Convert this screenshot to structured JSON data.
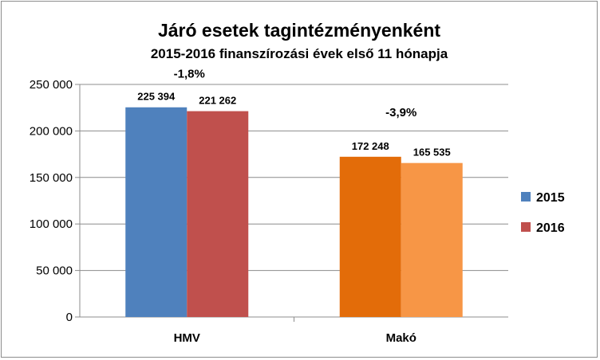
{
  "chart_data": {
    "type": "bar",
    "title": "Járó esetek tagintézményenként",
    "subtitle": "2015-2016 finanszírozási  évek első 11 hónapja",
    "categories": [
      "HMV",
      "Makó"
    ],
    "series": [
      {
        "name": "2015",
        "values": [
          225394,
          172248
        ],
        "labels": [
          "225 394",
          "172 248"
        ]
      },
      {
        "name": "2016",
        "values": [
          221262,
          165535
        ],
        "labels": [
          "221 262",
          "165 535"
        ]
      }
    ],
    "annotations": [
      "-1,8%",
      "-3,9%"
    ],
    "ylim": [
      0,
      250000
    ],
    "yticks": [
      0,
      50000,
      100000,
      150000,
      200000,
      250000
    ],
    "ytick_labels": [
      "0",
      "50 000",
      "100 000",
      "150 000",
      "200 000",
      "250 000"
    ],
    "grid": true,
    "legend": "right",
    "bar_colors": [
      [
        "#4f81bd",
        "#c0504d"
      ],
      [
        "#e36c09",
        "#f79646"
      ]
    ],
    "legend_colors": [
      "#4f81bd",
      "#c0504d"
    ]
  }
}
